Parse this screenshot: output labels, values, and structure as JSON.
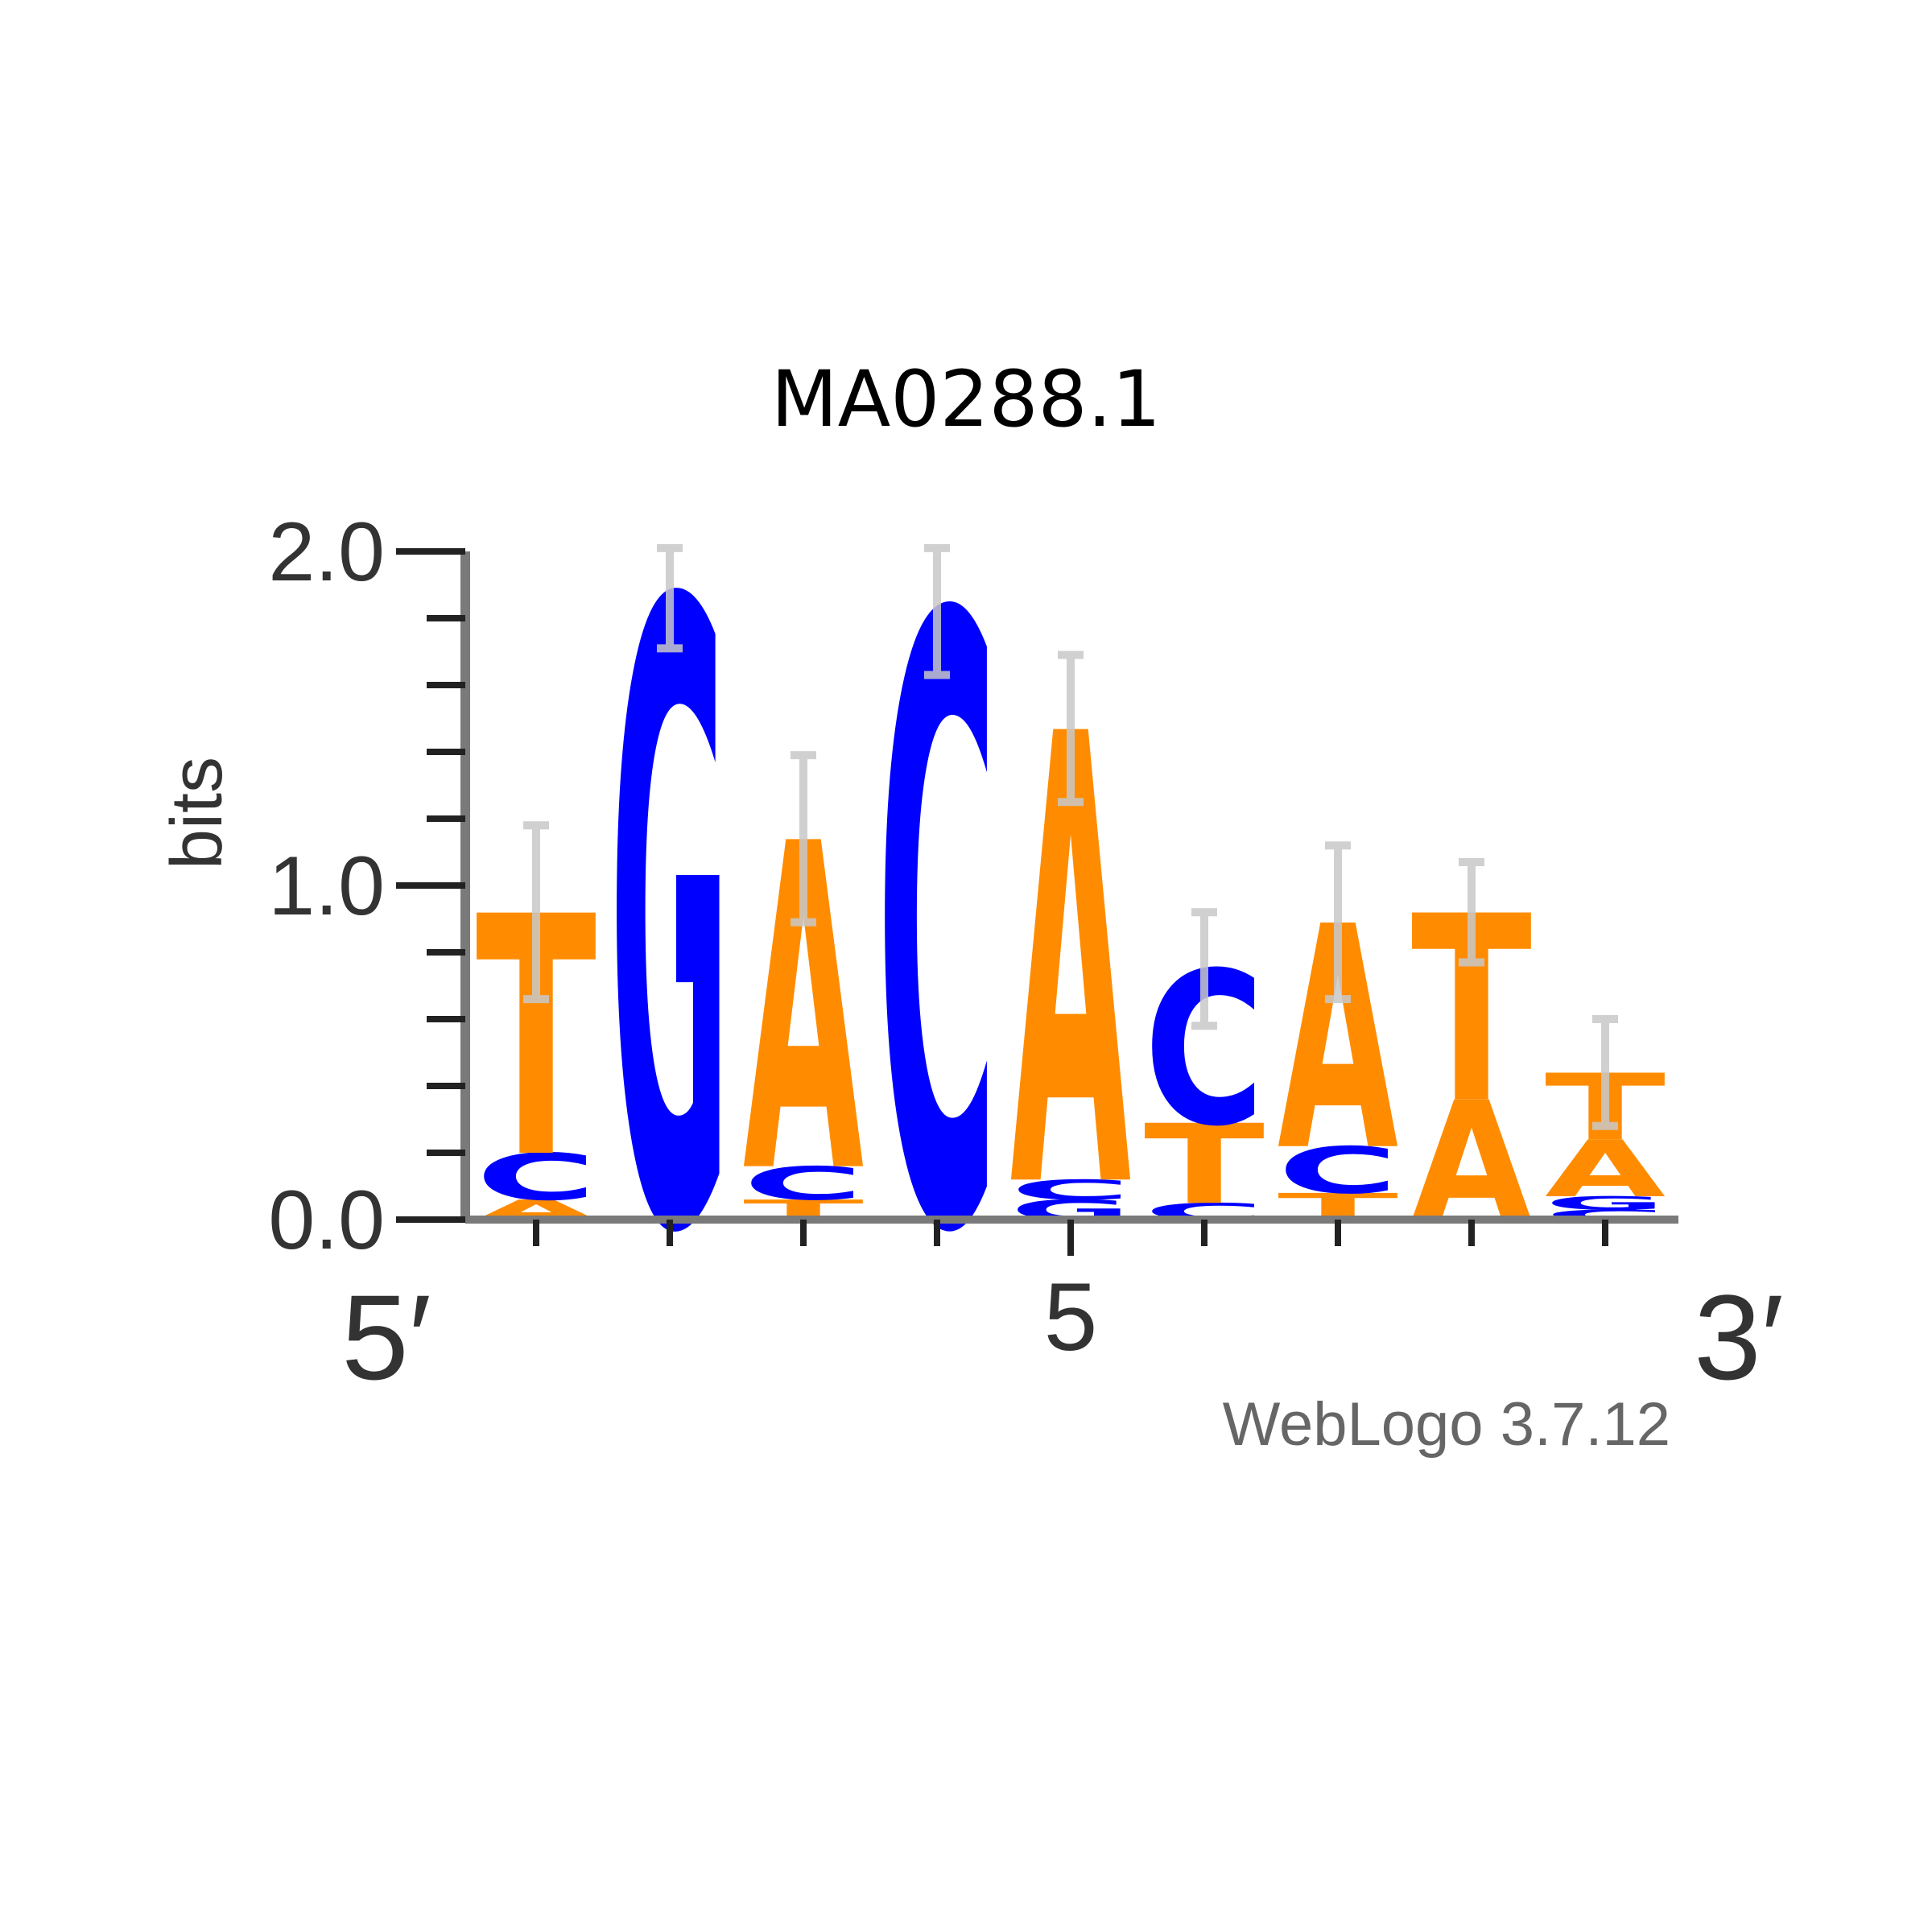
{
  "chart_data": {
    "type": "sequence-logo",
    "title": "MA0288.1",
    "ylabel": "bits",
    "ylim": [
      0,
      2
    ],
    "yticks": [
      "0.0",
      "1.0",
      "2.0"
    ],
    "x_end_labels": {
      "left": "5′",
      "right": "3′"
    },
    "x_tick_label": "5",
    "credit": "WebLogo 3.7.12",
    "colors": {
      "A": "#ff8c00",
      "T": "#ff8c00",
      "C": "#0000ff",
      "G": "#0000ff"
    },
    "positions": [
      {
        "pos": 1,
        "stack": [
          {
            "base": "A",
            "h": 0.06
          },
          {
            "base": "C",
            "h": 0.14
          },
          {
            "base": "T",
            "h": 0.72
          }
        ],
        "err": 0.26
      },
      {
        "pos": 2,
        "stack": [
          {
            "base": "G",
            "h": 1.86
          }
        ],
        "err": 0.15
      },
      {
        "pos": 3,
        "stack": [
          {
            "base": "T",
            "h": 0.06
          },
          {
            "base": "C",
            "h": 0.1
          },
          {
            "base": "A",
            "h": 0.98
          }
        ],
        "err": 0.25
      },
      {
        "pos": 4,
        "stack": [
          {
            "base": "C",
            "h": 1.82
          }
        ],
        "err": 0.19
      },
      {
        "pos": 5,
        "stack": [
          {
            "base": "G",
            "h": 0.06
          },
          {
            "base": "C",
            "h": 0.06
          },
          {
            "base": "A",
            "h": 1.35
          }
        ],
        "err": 0.22
      },
      {
        "pos": 6,
        "stack": [
          {
            "base": "C",
            "h": 0.05
          },
          {
            "base": "T",
            "h": 0.24
          },
          {
            "base": "C",
            "h": 0.46
          }
        ],
        "err": 0.17
      },
      {
        "pos": 7,
        "stack": [
          {
            "base": "T",
            "h": 0.08
          },
          {
            "base": "C",
            "h": 0.14
          },
          {
            "base": "A",
            "h": 0.67
          }
        ],
        "err": 0.23
      },
      {
        "pos": 8,
        "stack": [
          {
            "base": "A",
            "h": 0.36
          },
          {
            "base": "T",
            "h": 0.56
          }
        ],
        "err": 0.15
      },
      {
        "pos": 9,
        "stack": [
          {
            "base": "C",
            "h": 0.03
          },
          {
            "base": "G",
            "h": 0.04
          },
          {
            "base": "A",
            "h": 0.17
          },
          {
            "base": "T",
            "h": 0.2
          }
        ],
        "err": 0.16
      }
    ]
  }
}
